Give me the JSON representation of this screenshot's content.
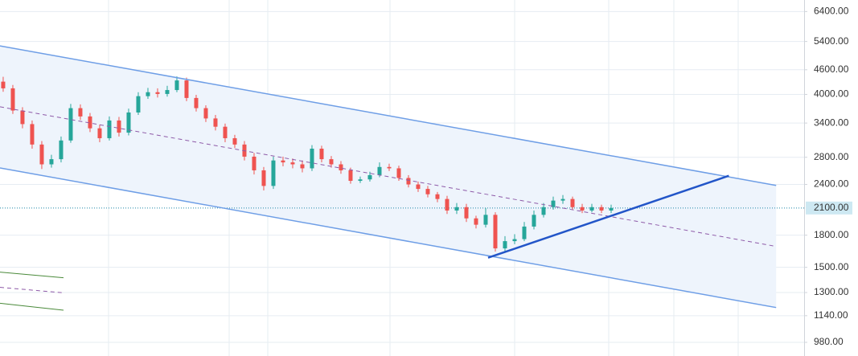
{
  "chart_data": {
    "type": "candlestick",
    "log_scale": true,
    "grid": true,
    "up_color": "#26a69a",
    "down_color": "#ef5350",
    "xlim": [
      -0.33,
      83
    ],
    "ylim": [
      907,
      6833
    ],
    "yticks": [
      {
        "value": 6400,
        "label": "6400.00"
      },
      {
        "value": 5400,
        "label": "5400.00"
      },
      {
        "value": 4600,
        "label": "4600.00"
      },
      {
        "value": 4000,
        "label": "4000.00"
      },
      {
        "value": 3400,
        "label": "3400.00"
      },
      {
        "value": 2800,
        "label": "2800.00"
      },
      {
        "value": 2400,
        "label": "2400.00"
      },
      {
        "value": 1800,
        "label": "1800.00"
      },
      {
        "value": 1500,
        "label": "1500.00"
      },
      {
        "value": 1300,
        "label": "1300.00"
      },
      {
        "value": 1140,
        "label": "1140.00"
      },
      {
        "value": 980,
        "label": "980.00"
      }
    ],
    "last_price": {
      "value": 2100,
      "label": "2100.00",
      "color": "#1e88a8"
    },
    "open": [
      4300,
      4140,
      3650,
      3380,
      3010,
      2690,
      2770,
      3080,
      3700,
      3530,
      3300,
      3120,
      3450,
      3220,
      3610,
      3960,
      4050,
      4010,
      4100,
      4330,
      3920,
      3700,
      3490,
      3330,
      3120,
      3010,
      2810,
      2600,
      2380,
      2750,
      2720,
      2690,
      2630,
      2940,
      2770,
      2690,
      2600,
      2450,
      2470,
      2530,
      2650,
      2630,
      2490,
      2400,
      2340,
      2270,
      2210,
      2070,
      2110,
      1980,
      1910,
      2020,
      1670,
      1740,
      1760,
      1890,
      2020,
      2110,
      2190,
      2210,
      2110,
      2070,
      2110,
      2070
    ],
    "high": [
      4420,
      4220,
      3720,
      3450,
      3070,
      2840,
      3150,
      3790,
      3780,
      3600,
      3370,
      3530,
      3520,
      3690,
      4050,
      4150,
      4140,
      4200,
      4430,
      4400,
      3990,
      3760,
      3560,
      3390,
      3180,
      3070,
      2870,
      2650,
      2810,
      2810,
      2780,
      2750,
      3000,
      2990,
      2820,
      2740,
      2640,
      2510,
      2580,
      2720,
      2700,
      2670,
      2530,
      2440,
      2380,
      2300,
      2250,
      2160,
      2150,
      2010,
      2100,
      2050,
      1790,
      1810,
      1940,
      2070,
      2160,
      2240,
      2260,
      2240,
      2150,
      2150,
      2140,
      2140
    ],
    "low": [
      4060,
      3580,
      3300,
      2940,
      2620,
      2640,
      2720,
      3040,
      3460,
      3230,
      3050,
      3080,
      3150,
      3170,
      3560,
      3900,
      3930,
      3950,
      4050,
      3850,
      3630,
      3420,
      3260,
      3050,
      2950,
      2750,
      2540,
      2320,
      2340,
      2660,
      2630,
      2570,
      2590,
      2720,
      2640,
      2550,
      2410,
      2420,
      2440,
      2500,
      2590,
      2450,
      2360,
      2300,
      2230,
      2170,
      2030,
      2030,
      1940,
      1870,
      1880,
      1640,
      1630,
      1710,
      1740,
      1860,
      1990,
      2080,
      2150,
      2080,
      2040,
      2050,
      2040,
      2040
    ],
    "close": [
      4140,
      3650,
      3380,
      3010,
      2690,
      2770,
      3080,
      3700,
      3530,
      3300,
      3120,
      3450,
      3220,
      3610,
      3960,
      4050,
      4010,
      4100,
      4330,
      3920,
      3700,
      3490,
      3330,
      3120,
      3010,
      2810,
      2600,
      2380,
      2750,
      2720,
      2690,
      2630,
      2940,
      2770,
      2690,
      2600,
      2450,
      2470,
      2530,
      2650,
      2630,
      2490,
      2400,
      2340,
      2270,
      2210,
      2070,
      2110,
      1980,
      1910,
      2020,
      1670,
      1740,
      1760,
      1890,
      2020,
      2110,
      2190,
      2210,
      2110,
      2070,
      2110,
      2070,
      2100
    ],
    "channel_fill": "#eef4fc",
    "lines": [
      {
        "x": [
          -0.33,
          80.1
        ],
        "y": [
          5268,
          2387
        ],
        "color": "#6e9ee6",
        "width": 1.5,
        "dash": false
      },
      {
        "x": [
          -0.33,
          80.1
        ],
        "y": [
          2636,
          1194
        ],
        "color": "#6e9ee6",
        "width": 1.5,
        "dash": false
      },
      {
        "x": [
          -0.33,
          80.1
        ],
        "y": [
          3728,
          1689
        ],
        "color": "#8e5aa8",
        "width": 1,
        "dash": true
      },
      {
        "x": [
          50.25,
          75.2
        ],
        "y": [
          1584,
          2521
        ],
        "color": "#2255c8",
        "width": 2.5,
        "dash": false
      },
      {
        "x": [
          -0.33,
          6.25
        ],
        "y": [
          1460,
          1414
        ],
        "color": "#4a8a3a",
        "width": 1,
        "dash": false
      },
      {
        "x": [
          -0.33,
          6.25
        ],
        "y": [
          1339,
          1298
        ],
        "color": "#8e5aa8",
        "width": 1,
        "dash": true
      },
      {
        "x": [
          -0.33,
          6.25
        ],
        "y": [
          1223,
          1176
        ],
        "color": "#4a8a3a",
        "width": 1,
        "dash": false
      }
    ]
  }
}
